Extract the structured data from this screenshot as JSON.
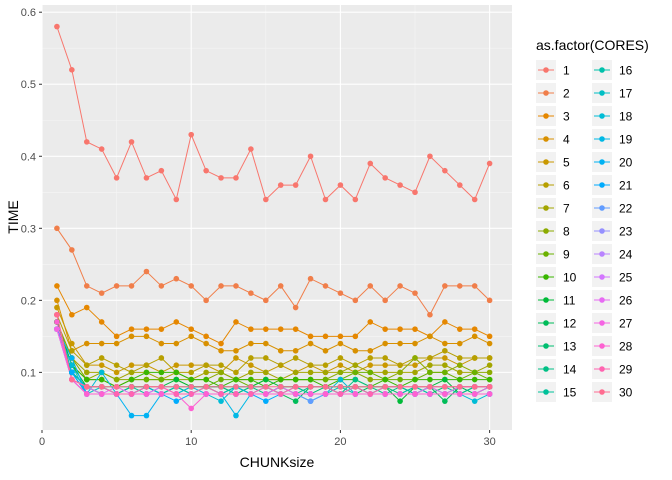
{
  "chart_data": {
    "type": "line",
    "xlabel": "CHUNKsize",
    "ylabel": "TIME",
    "xlim": [
      0,
      31.5
    ],
    "ylim": [
      0.02,
      0.61
    ],
    "x_ticks": [
      0,
      10,
      20,
      30
    ],
    "y_ticks": [
      0.1,
      0.2,
      0.3,
      0.4,
      0.5,
      0.6
    ],
    "grid": true,
    "legend_title": "as.factor(CORES)",
    "legend_position": "right",
    "x": [
      1,
      2,
      3,
      4,
      5,
      6,
      7,
      8,
      9,
      10,
      11,
      12,
      13,
      14,
      15,
      16,
      17,
      18,
      19,
      20,
      21,
      22,
      23,
      24,
      25,
      26,
      27,
      28,
      29,
      30
    ],
    "series": [
      {
        "name": "1",
        "color": "#F8766D",
        "values": [
          0.58,
          0.52,
          0.42,
          0.41,
          0.37,
          0.42,
          0.37,
          0.38,
          0.34,
          0.43,
          0.38,
          0.37,
          0.37,
          0.41,
          0.34,
          0.36,
          0.36,
          0.4,
          0.34,
          0.36,
          0.34,
          0.39,
          0.37,
          0.36,
          0.35,
          0.4,
          0.38,
          0.36,
          0.34,
          0.39
        ]
      },
      {
        "name": "2",
        "color": "#F07E4A",
        "values": [
          0.3,
          0.27,
          0.22,
          0.21,
          0.22,
          0.22,
          0.24,
          0.22,
          0.23,
          0.22,
          0.2,
          0.22,
          0.22,
          0.21,
          0.2,
          0.22,
          0.19,
          0.23,
          0.22,
          0.21,
          0.2,
          0.22,
          0.2,
          0.22,
          0.21,
          0.18,
          0.22,
          0.22,
          0.22,
          0.2
        ]
      },
      {
        "name": "3",
        "color": "#E58700",
        "values": [
          0.22,
          0.18,
          0.19,
          0.17,
          0.15,
          0.16,
          0.16,
          0.16,
          0.17,
          0.16,
          0.15,
          0.14,
          0.17,
          0.16,
          0.16,
          0.16,
          0.16,
          0.15,
          0.15,
          0.15,
          0.15,
          0.17,
          0.16,
          0.16,
          0.16,
          0.15,
          0.17,
          0.16,
          0.16,
          0.15
        ]
      },
      {
        "name": "4",
        "color": "#D89000",
        "values": [
          0.2,
          0.13,
          0.14,
          0.14,
          0.14,
          0.15,
          0.15,
          0.14,
          0.14,
          0.15,
          0.14,
          0.13,
          0.13,
          0.14,
          0.14,
          0.13,
          0.13,
          0.14,
          0.13,
          0.14,
          0.13,
          0.13,
          0.14,
          0.14,
          0.14,
          0.15,
          0.14,
          0.14,
          0.15,
          0.14
        ]
      },
      {
        "name": "5",
        "color": "#C99800",
        "values": [
          0.19,
          0.14,
          0.11,
          0.11,
          0.1,
          0.11,
          0.11,
          0.1,
          0.11,
          0.11,
          0.11,
          0.1,
          0.12,
          0.11,
          0.1,
          0.11,
          0.1,
          0.11,
          0.1,
          0.11,
          0.1,
          0.11,
          0.11,
          0.11,
          0.11,
          0.12,
          0.12,
          0.11,
          0.12,
          0.12
        ]
      },
      {
        "name": "6",
        "color": "#B79F00",
        "values": [
          0.18,
          0.13,
          0.11,
          0.12,
          0.11,
          0.1,
          0.11,
          0.12,
          0.1,
          0.1,
          0.11,
          0.11,
          0.1,
          0.12,
          0.12,
          0.11,
          0.12,
          0.11,
          0.11,
          0.12,
          0.11,
          0.12,
          0.12,
          0.11,
          0.12,
          0.12,
          0.13,
          0.12,
          0.12,
          0.12
        ]
      },
      {
        "name": "7",
        "color": "#A3A500",
        "values": [
          0.17,
          0.12,
          0.1,
          0.1,
          0.09,
          0.1,
          0.1,
          0.09,
          0.1,
          0.09,
          0.1,
          0.1,
          0.09,
          0.1,
          0.1,
          0.09,
          0.1,
          0.1,
          0.1,
          0.1,
          0.11,
          0.1,
          0.1,
          0.1,
          0.1,
          0.11,
          0.11,
          0.1,
          0.1,
          0.11
        ]
      },
      {
        "name": "8",
        "color": "#8CAB00",
        "values": [
          0.17,
          0.12,
          0.09,
          0.1,
          0.09,
          0.09,
          0.09,
          0.09,
          0.09,
          0.09,
          0.09,
          0.1,
          0.09,
          0.09,
          0.09,
          0.09,
          0.09,
          0.09,
          0.09,
          0.1,
          0.1,
          0.09,
          0.09,
          0.1,
          0.12,
          0.1,
          0.1,
          0.11,
          0.1,
          0.1
        ]
      },
      {
        "name": "9",
        "color": "#6BB100",
        "values": [
          0.17,
          0.11,
          0.09,
          0.09,
          0.08,
          0.09,
          0.09,
          0.09,
          0.09,
          0.08,
          0.08,
          0.09,
          0.09,
          0.08,
          0.09,
          0.09,
          0.09,
          0.09,
          0.09,
          0.09,
          0.1,
          0.1,
          0.09,
          0.09,
          0.09,
          0.1,
          0.1,
          0.09,
          0.1,
          0.09
        ]
      },
      {
        "name": "10",
        "color": "#39B600",
        "values": [
          0.17,
          0.11,
          0.09,
          0.09,
          0.08,
          0.09,
          0.1,
          0.1,
          0.1,
          0.09,
          0.09,
          0.08,
          0.09,
          0.09,
          0.08,
          0.09,
          0.09,
          0.09,
          0.08,
          0.09,
          0.09,
          0.08,
          0.09,
          0.08,
          0.09,
          0.09,
          0.09,
          0.09,
          0.09,
          0.09
        ]
      },
      {
        "name": "11",
        "color": "#00BA38",
        "values": [
          0.17,
          0.11,
          0.08,
          0.08,
          0.08,
          0.08,
          0.08,
          0.08,
          0.09,
          0.08,
          0.08,
          0.08,
          0.08,
          0.08,
          0.09,
          0.08,
          0.08,
          0.08,
          0.08,
          0.08,
          0.08,
          0.08,
          0.08,
          0.06,
          0.08,
          0.08,
          0.09,
          0.07,
          0.08,
          0.08
        ]
      },
      {
        "name": "12",
        "color": "#00BC59",
        "values": [
          0.17,
          0.1,
          0.08,
          0.08,
          0.07,
          0.08,
          0.08,
          0.07,
          0.08,
          0.08,
          0.08,
          0.08,
          0.07,
          0.08,
          0.08,
          0.07,
          0.06,
          0.08,
          0.08,
          0.07,
          0.07,
          0.08,
          0.08,
          0.08,
          0.07,
          0.08,
          0.06,
          0.08,
          0.07,
          0.08
        ]
      },
      {
        "name": "13",
        "color": "#00BE70",
        "values": [
          0.16,
          0.1,
          0.08,
          0.07,
          0.07,
          0.08,
          0.08,
          0.07,
          0.07,
          0.08,
          0.08,
          0.07,
          0.08,
          0.07,
          0.07,
          0.08,
          0.08,
          0.07,
          0.08,
          0.08,
          0.08,
          0.07,
          0.08,
          0.07,
          0.08,
          0.07,
          0.08,
          0.08,
          0.08,
          0.08
        ]
      },
      {
        "name": "14",
        "color": "#00C085",
        "values": [
          0.16,
          0.1,
          0.08,
          0.07,
          0.07,
          0.07,
          0.08,
          0.07,
          0.08,
          0.07,
          0.08,
          0.08,
          0.07,
          0.08,
          0.07,
          0.08,
          0.07,
          0.08,
          0.08,
          0.07,
          0.09,
          0.08,
          0.07,
          0.08,
          0.07,
          0.08,
          0.07,
          0.08,
          0.08,
          0.08
        ]
      },
      {
        "name": "15",
        "color": "#00C19A",
        "values": [
          0.16,
          0.1,
          0.08,
          0.08,
          0.07,
          0.08,
          0.07,
          0.08,
          0.08,
          0.07,
          0.08,
          0.07,
          0.08,
          0.08,
          0.08,
          0.07,
          0.08,
          0.07,
          0.07,
          0.07,
          0.08,
          0.07,
          0.08,
          0.08,
          0.07,
          0.08,
          0.08,
          0.07,
          0.08,
          0.08
        ]
      },
      {
        "name": "16",
        "color": "#00C1AB",
        "values": [
          0.16,
          0.1,
          0.07,
          0.07,
          0.07,
          0.07,
          0.07,
          0.07,
          0.08,
          0.07,
          0.07,
          0.07,
          0.08,
          0.07,
          0.07,
          0.07,
          0.07,
          0.07,
          0.07,
          0.08,
          0.07,
          0.07,
          0.07,
          0.07,
          0.08,
          0.07,
          0.07,
          0.07,
          0.07,
          0.08
        ]
      },
      {
        "name": "17",
        "color": "#00BFC4",
        "values": [
          0.16,
          0.1,
          0.07,
          0.08,
          0.07,
          0.07,
          0.08,
          0.07,
          0.07,
          0.07,
          0.07,
          0.07,
          0.07,
          0.07,
          0.08,
          0.07,
          0.07,
          0.07,
          0.07,
          0.07,
          0.07,
          0.07,
          0.07,
          0.07,
          0.07,
          0.07,
          0.07,
          0.07,
          0.07,
          0.07
        ]
      },
      {
        "name": "18",
        "color": "#00BCD6",
        "values": [
          0.16,
          0.11,
          0.07,
          0.1,
          0.07,
          0.07,
          0.08,
          0.07,
          0.07,
          0.08,
          0.07,
          0.06,
          0.08,
          0.07,
          0.07,
          0.08,
          0.07,
          0.06,
          0.07,
          0.09,
          0.07,
          0.07,
          0.07,
          0.07,
          0.07,
          0.07,
          0.07,
          0.07,
          0.06,
          0.07
        ]
      },
      {
        "name": "19",
        "color": "#00B8E5",
        "values": [
          0.16,
          0.1,
          0.07,
          0.07,
          0.07,
          0.07,
          0.07,
          0.07,
          0.07,
          0.07,
          0.07,
          0.07,
          0.04,
          0.07,
          0.07,
          0.07,
          0.07,
          0.07,
          0.07,
          0.07,
          0.07,
          0.07,
          0.07,
          0.07,
          0.07,
          0.07,
          0.07,
          0.07,
          0.07,
          0.07
        ]
      },
      {
        "name": "20",
        "color": "#00B2F3",
        "values": [
          0.16,
          0.12,
          0.07,
          0.07,
          0.07,
          0.04,
          0.04,
          0.07,
          0.07,
          0.07,
          0.07,
          0.07,
          0.07,
          0.07,
          0.07,
          0.07,
          0.07,
          0.07,
          0.07,
          0.07,
          0.07,
          0.07,
          0.07,
          0.07,
          0.07,
          0.07,
          0.07,
          0.07,
          0.07,
          0.07
        ]
      },
      {
        "name": "21",
        "color": "#00ABFD",
        "values": [
          0.16,
          0.1,
          0.07,
          0.07,
          0.07,
          0.07,
          0.07,
          0.07,
          0.06,
          0.07,
          0.07,
          0.07,
          0.07,
          0.07,
          0.06,
          0.07,
          0.07,
          0.07,
          0.07,
          0.07,
          0.07,
          0.07,
          0.07,
          0.07,
          0.07,
          0.07,
          0.07,
          0.07,
          0.07,
          0.07
        ]
      },
      {
        "name": "22",
        "color": "#619CFF",
        "values": [
          0.16,
          0.09,
          0.07,
          0.07,
          0.07,
          0.07,
          0.07,
          0.07,
          0.07,
          0.07,
          0.07,
          0.07,
          0.07,
          0.07,
          0.07,
          0.07,
          0.07,
          0.06,
          0.07,
          0.07,
          0.07,
          0.07,
          0.07,
          0.07,
          0.07,
          0.07,
          0.07,
          0.07,
          0.07,
          0.07
        ]
      },
      {
        "name": "23",
        "color": "#9590FF",
        "values": [
          0.16,
          0.09,
          0.07,
          0.07,
          0.07,
          0.07,
          0.07,
          0.07,
          0.07,
          0.07,
          0.07,
          0.07,
          0.07,
          0.07,
          0.07,
          0.07,
          0.07,
          0.07,
          0.07,
          0.07,
          0.07,
          0.07,
          0.07,
          0.07,
          0.07,
          0.07,
          0.07,
          0.07,
          0.07,
          0.07
        ]
      },
      {
        "name": "24",
        "color": "#B983FF",
        "values": [
          0.16,
          0.09,
          0.07,
          0.07,
          0.07,
          0.07,
          0.07,
          0.07,
          0.07,
          0.07,
          0.07,
          0.07,
          0.07,
          0.07,
          0.07,
          0.07,
          0.07,
          0.07,
          0.07,
          0.07,
          0.07,
          0.07,
          0.07,
          0.07,
          0.07,
          0.07,
          0.07,
          0.07,
          0.07,
          0.07
        ]
      },
      {
        "name": "25",
        "color": "#D376FF",
        "values": [
          0.16,
          0.09,
          0.07,
          0.07,
          0.07,
          0.07,
          0.07,
          0.07,
          0.07,
          0.07,
          0.07,
          0.07,
          0.07,
          0.07,
          0.07,
          0.07,
          0.07,
          0.07,
          0.07,
          0.07,
          0.07,
          0.07,
          0.07,
          0.07,
          0.07,
          0.07,
          0.07,
          0.07,
          0.07,
          0.07
        ]
      },
      {
        "name": "26",
        "color": "#E76BF3",
        "values": [
          0.16,
          0.09,
          0.08,
          0.07,
          0.08,
          0.07,
          0.07,
          0.08,
          0.07,
          0.07,
          0.07,
          0.07,
          0.07,
          0.07,
          0.07,
          0.07,
          0.07,
          0.07,
          0.07,
          0.07,
          0.07,
          0.07,
          0.07,
          0.07,
          0.07,
          0.08,
          0.07,
          0.08,
          0.08,
          0.08
        ]
      },
      {
        "name": "27",
        "color": "#F564E3",
        "values": [
          0.16,
          0.09,
          0.07,
          0.07,
          0.07,
          0.07,
          0.07,
          0.07,
          0.07,
          0.07,
          0.07,
          0.07,
          0.07,
          0.07,
          0.07,
          0.08,
          0.07,
          0.07,
          0.07,
          0.07,
          0.07,
          0.07,
          0.07,
          0.07,
          0.07,
          0.07,
          0.07,
          0.07,
          0.07,
          0.08
        ]
      },
      {
        "name": "28",
        "color": "#FD61D1",
        "values": [
          0.17,
          0.09,
          0.07,
          0.07,
          0.07,
          0.07,
          0.07,
          0.07,
          0.07,
          0.05,
          0.07,
          0.07,
          0.07,
          0.07,
          0.07,
          0.07,
          0.07,
          0.07,
          0.07,
          0.07,
          0.07,
          0.07,
          0.07,
          0.07,
          0.07,
          0.07,
          0.07,
          0.07,
          0.07,
          0.07
        ]
      },
      {
        "name": "29",
        "color": "#FF64B0",
        "values": [
          0.18,
          0.09,
          0.08,
          0.08,
          0.07,
          0.07,
          0.08,
          0.08,
          0.07,
          0.07,
          0.08,
          0.07,
          0.07,
          0.07,
          0.08,
          0.07,
          0.08,
          0.08,
          0.08,
          0.07,
          0.08,
          0.07,
          0.08,
          0.08,
          0.08,
          0.08,
          0.08,
          0.08,
          0.08,
          0.08
        ]
      },
      {
        "name": "30",
        "color": "#FF6C91",
        "values": [
          0.18,
          0.09,
          0.08,
          0.08,
          0.08,
          0.08,
          0.08,
          0.08,
          0.08,
          0.08,
          0.08,
          0.08,
          0.08,
          0.08,
          0.08,
          0.08,
          0.08,
          0.08,
          0.08,
          0.08,
          0.08,
          0.08,
          0.08,
          0.08,
          0.08,
          0.08,
          0.08,
          0.08,
          0.08,
          0.08
        ]
      }
    ]
  }
}
